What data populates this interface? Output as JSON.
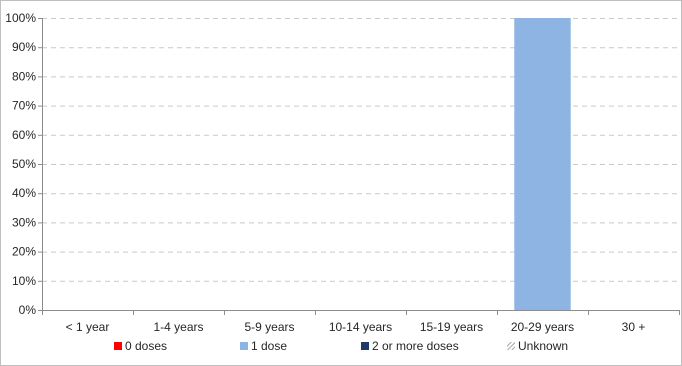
{
  "chart_data": {
    "type": "bar",
    "stacked": true,
    "categories": [
      "< 1 year",
      "1-4 years",
      "5-9 years",
      "10-14 years",
      "15-19 years",
      "20-29 years",
      "30 +"
    ],
    "y_ticks": [
      "0%",
      "10%",
      "20%",
      "30%",
      "40%",
      "50%",
      "60%",
      "70%",
      "80%",
      "90%",
      "100%"
    ],
    "ylim": [
      0,
      100
    ],
    "grid": true,
    "legend_position": "bottom",
    "series": [
      {
        "name": "0 doses",
        "color": "#ff0000",
        "pattern": "solid",
        "values": [
          0,
          0,
          0,
          0,
          0,
          0,
          0
        ]
      },
      {
        "name": "1 dose",
        "color": "#8db4e2",
        "pattern": "solid",
        "values": [
          0,
          0,
          0,
          0,
          0,
          100,
          0
        ]
      },
      {
        "name": "2 or more doses",
        "color": "#1f3864",
        "pattern": "solid",
        "values": [
          0,
          0,
          0,
          0,
          0,
          0,
          0
        ]
      },
      {
        "name": "Unknown",
        "color": "#7f7f7f",
        "pattern": "hatch",
        "values": [
          0,
          0,
          0,
          0,
          0,
          0,
          0
        ]
      }
    ]
  }
}
